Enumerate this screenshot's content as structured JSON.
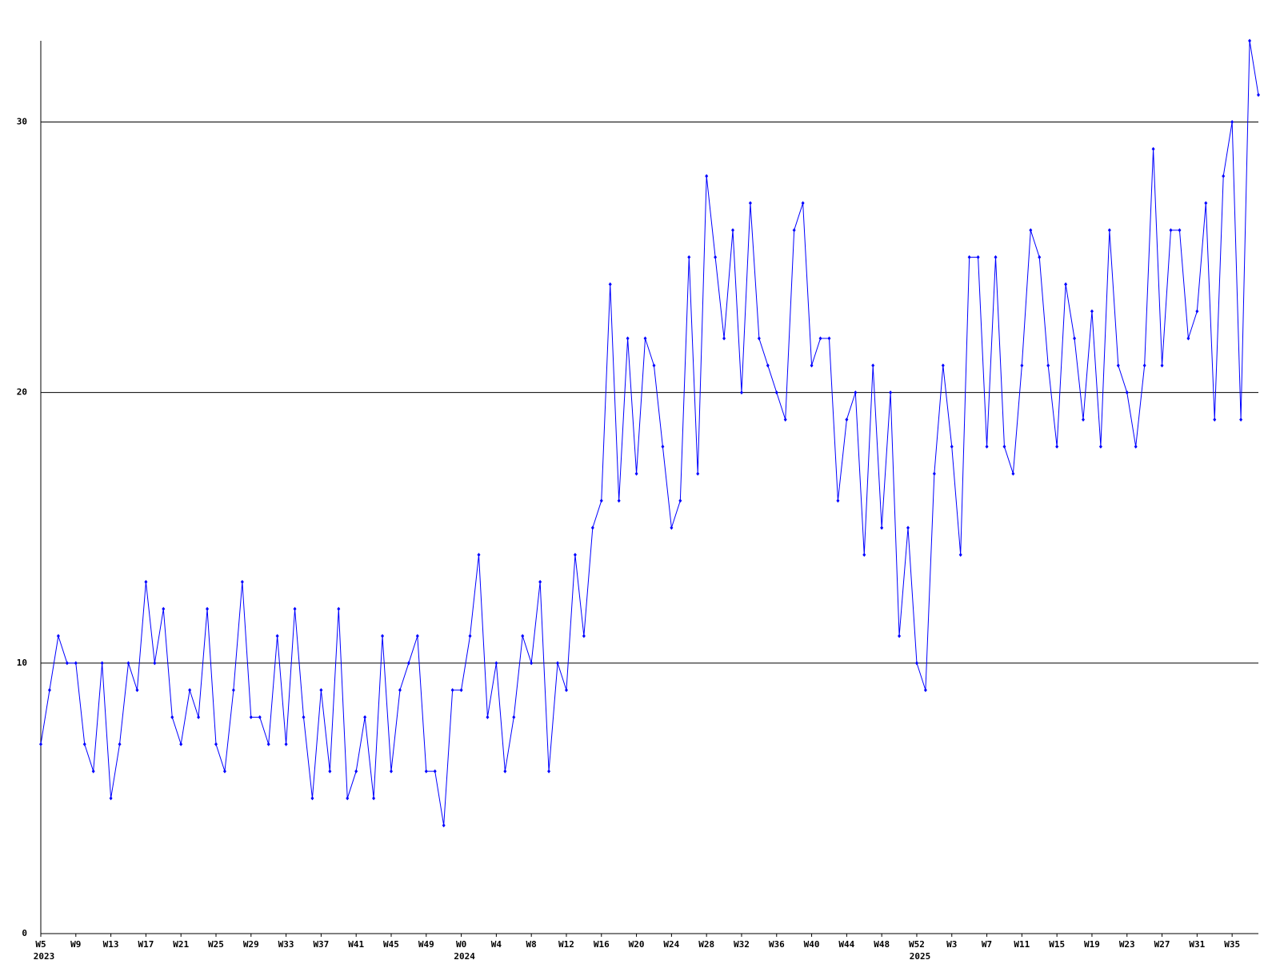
{
  "chart_data": {
    "type": "line",
    "categories": [
      "W5",
      null,
      null,
      null,
      "W9",
      null,
      null,
      null,
      "W13",
      null,
      null,
      null,
      "W17",
      null,
      null,
      null,
      "W21",
      null,
      null,
      null,
      "W25",
      null,
      null,
      null,
      "W29",
      null,
      null,
      null,
      "W33",
      null,
      null,
      null,
      "W37",
      null,
      null,
      null,
      "W41",
      null,
      null,
      null,
      "W45",
      null,
      null,
      null,
      "W49",
      null,
      null,
      null,
      "W0",
      null,
      null,
      null,
      "W4",
      null,
      null,
      null,
      "W8",
      null,
      null,
      null,
      "W12",
      null,
      null,
      null,
      "W16",
      null,
      null,
      null,
      "W20",
      null,
      null,
      null,
      "W24",
      null,
      null,
      null,
      "W28",
      null,
      null,
      null,
      "W32",
      null,
      null,
      null,
      "W36",
      null,
      null,
      null,
      "W40",
      null,
      null,
      null,
      "W44",
      null,
      null,
      null,
      "W48",
      null,
      null,
      null,
      "W52",
      null,
      null,
      null,
      "W3",
      null,
      null,
      null,
      "W7",
      null,
      null,
      null,
      "W11",
      null,
      null,
      null,
      "W15",
      null,
      null,
      null,
      "W19",
      null,
      null,
      null,
      "W23",
      null,
      null,
      null,
      "W27",
      null,
      null,
      null,
      "W31",
      null,
      null,
      null,
      "W35",
      null,
      null,
      null
    ],
    "year_ticks": [
      {
        "value": 0,
        "label": "2023"
      },
      {
        "value": 48,
        "label": "2024"
      },
      {
        "value": 100,
        "label": "2025"
      }
    ],
    "values": [
      7,
      9,
      11,
      10,
      10,
      7,
      6,
      10,
      5,
      7,
      10,
      9,
      13,
      10,
      12,
      8,
      7,
      9,
      8,
      12,
      7,
      6,
      9,
      13,
      8,
      8,
      7,
      11,
      7,
      12,
      8,
      5,
      9,
      6,
      12,
      5,
      6,
      8,
      5,
      11,
      6,
      9,
      10,
      11,
      6,
      6,
      4,
      9,
      9,
      11,
      14,
      8,
      10,
      6,
      8,
      11,
      10,
      13,
      6,
      10,
      9,
      14,
      11,
      15,
      16,
      24,
      16,
      22,
      17,
      22,
      21,
      18,
      15,
      16,
      25,
      17,
      28,
      25,
      22,
      26,
      20,
      27,
      22,
      21,
      20,
      19,
      26,
      27,
      21,
      22,
      22,
      16,
      19,
      20,
      14,
      21,
      15,
      20,
      11,
      15,
      10,
      9,
      17,
      21,
      18,
      14,
      25,
      25,
      18,
      25,
      18,
      17,
      21,
      26,
      25,
      21,
      18,
      24,
      22,
      19,
      23,
      18,
      26,
      21,
      20,
      18,
      21,
      29,
      21,
      26,
      26,
      22,
      23,
      27,
      19,
      28,
      30,
      19,
      33,
      31
    ],
    "color": "#0000ff",
    "ylim": [
      0,
      33
    ],
    "yticks": [
      0,
      10,
      20,
      30
    ],
    "grid": true
  }
}
